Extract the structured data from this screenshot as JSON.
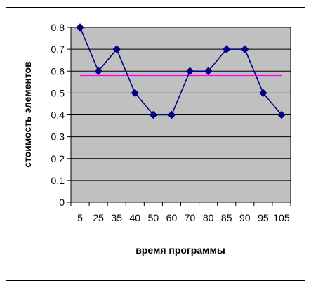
{
  "chart_data": {
    "type": "line",
    "categories": [
      "5",
      "25",
      "35",
      "40",
      "50",
      "60",
      "70",
      "80",
      "85",
      "90",
      "95",
      "105"
    ],
    "series": [
      {
        "values": [
          0.8,
          0.6,
          0.7,
          0.5,
          0.4,
          0.4,
          0.6,
          0.6,
          0.7,
          0.7,
          0.5,
          0.4
        ],
        "color": "#000080",
        "marker": "diamond"
      },
      {
        "values": [
          0.58,
          0.58,
          0.58,
          0.58,
          0.58,
          0.58,
          0.58,
          0.58,
          0.58,
          0.58,
          0.58,
          0.58
        ],
        "color": "#ff00ff",
        "marker": "none"
      }
    ],
    "xlabel": "время программы",
    "ylabel": "стоимость элементов",
    "ylim": [
      0,
      0.8
    ],
    "yticks": [
      "0",
      "0,1",
      "0,2",
      "0,3",
      "0,4",
      "0,5",
      "0,6",
      "0,7",
      "0,8"
    ],
    "grid": true,
    "plot_background": "#c0c0c0"
  }
}
